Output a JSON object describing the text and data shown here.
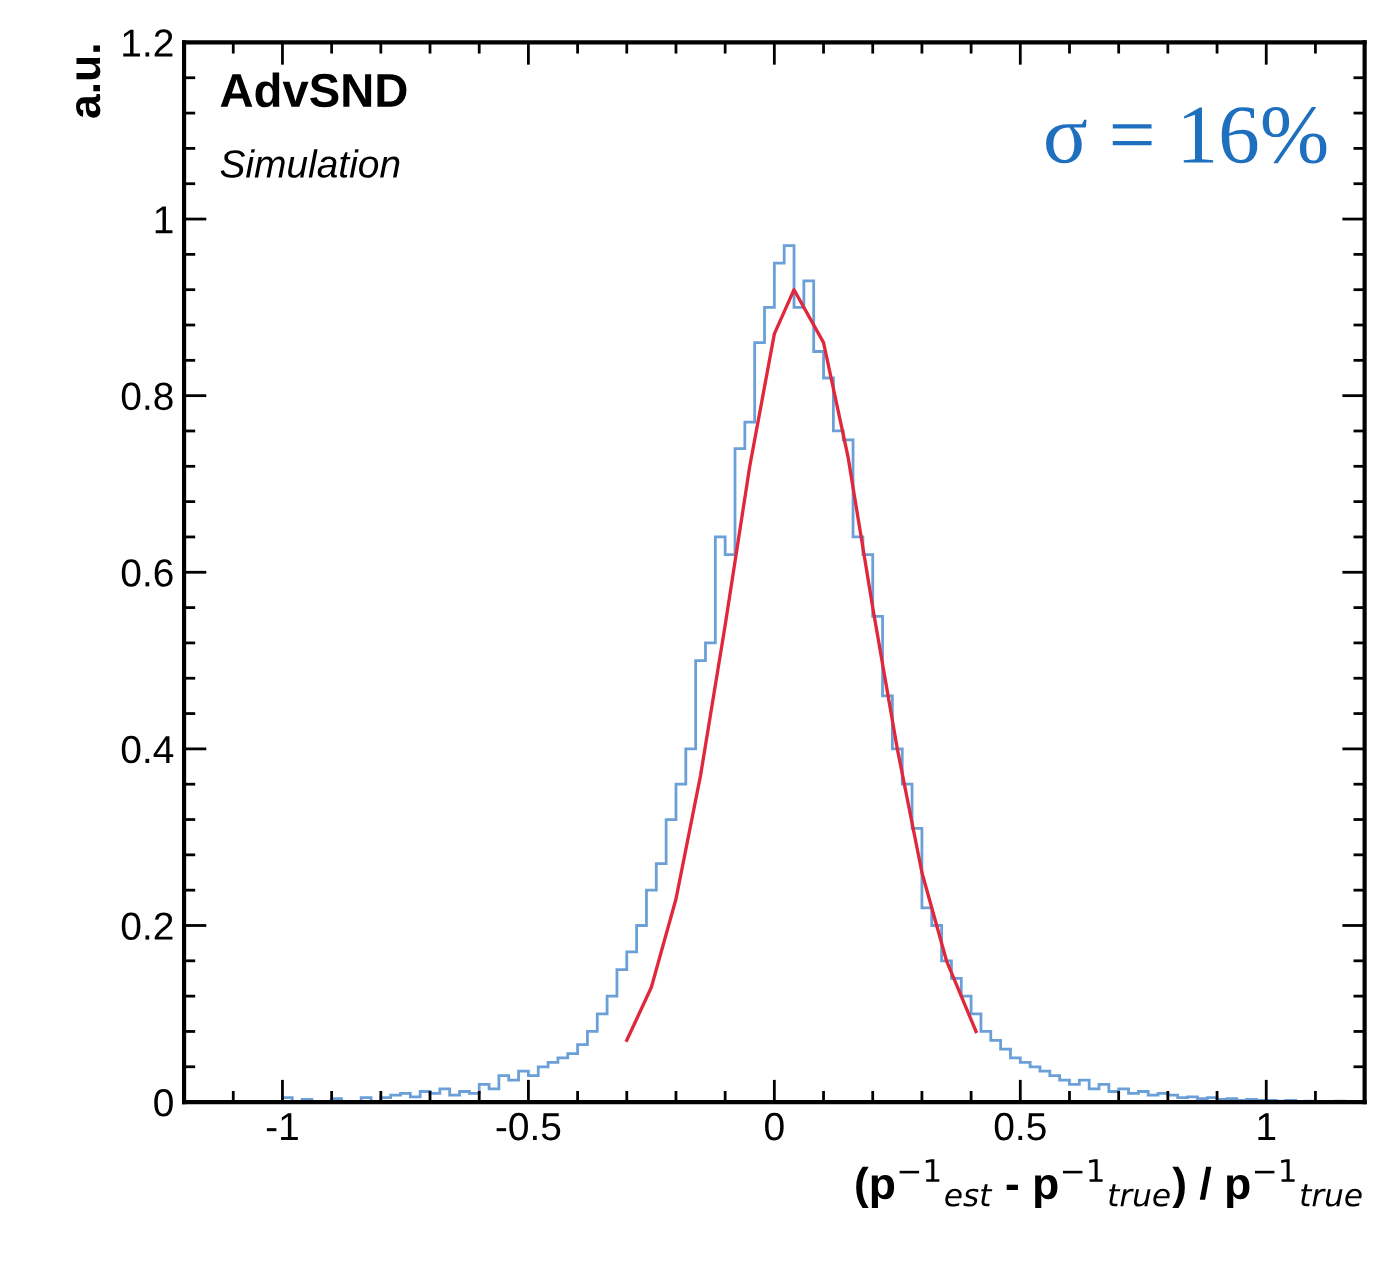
{
  "chart_data": {
    "type": "histogram",
    "xlabel": "(p$^{−1}$$_{est}$ - p$^{−1}$$_{true}$) / p$^{−1}$$_{true}$",
    "ylabel": "a.u.",
    "annotations": [
      "AdvSND",
      "Simulation",
      "σ = 16%"
    ],
    "xlim": [
      -1.2,
      1.2
    ],
    "ylim": [
      0,
      1.2
    ],
    "xticks": [
      -1,
      -0.5,
      0,
      0.5,
      1
    ],
    "yticks": [
      0,
      0.2,
      0.4,
      0.6,
      0.8,
      1,
      1.2
    ],
    "grid": false,
    "legend": false,
    "bins": [
      -1.2,
      -1.18,
      -1.16,
      -1.14,
      -1.12,
      -1.1,
      -1.08,
      -1.06,
      -1.04,
      -1.02,
      -1.0,
      -0.98,
      -0.96,
      -0.94,
      -0.92,
      -0.9,
      -0.88,
      -0.86,
      -0.84,
      -0.82,
      -0.8,
      -0.78,
      -0.76,
      -0.74,
      -0.72,
      -0.7,
      -0.68,
      -0.66,
      -0.64,
      -0.62,
      -0.6,
      -0.58,
      -0.56,
      -0.54,
      -0.52,
      -0.5,
      -0.48,
      -0.46,
      -0.44,
      -0.42,
      -0.4,
      -0.38,
      -0.36,
      -0.34,
      -0.32,
      -0.3,
      -0.28,
      -0.26,
      -0.24,
      -0.22,
      -0.2,
      -0.18,
      -0.16,
      -0.14,
      -0.12,
      -0.1,
      -0.08,
      -0.06,
      -0.04,
      -0.02,
      0,
      0.02,
      0.04,
      0.06,
      0.08,
      0.1,
      0.12,
      0.14,
      0.16,
      0.18,
      0.2,
      0.22,
      0.24,
      0.26,
      0.28,
      0.3,
      0.32,
      0.34,
      0.36,
      0.38,
      0.4,
      0.42,
      0.44,
      0.46,
      0.48,
      0.5,
      0.52,
      0.54,
      0.56,
      0.58,
      0.6,
      0.62,
      0.64,
      0.66,
      0.68,
      0.7,
      0.72,
      0.74,
      0.76,
      0.78,
      0.8,
      0.82,
      0.84,
      0.86,
      0.88,
      0.9,
      0.92,
      0.94,
      0.96,
      0.98,
      1.0,
      1.02,
      1.04,
      1.06,
      1.08,
      1.1,
      1.12,
      1.14,
      1.16,
      1.18,
      1.2
    ],
    "color": "#6a9fd8",
    "values": [
      0,
      0,
      0,
      0,
      0,
      0,
      0,
      0,
      0,
      0,
      0.005,
      0,
      0.003,
      0,
      0,
      0.004,
      0,
      0,
      0.005,
      0,
      0.005,
      0.008,
      0.01,
      0.006,
      0.012,
      0.01,
      0.015,
      0.008,
      0.012,
      0.01,
      0.02,
      0.015,
      0.03,
      0.025,
      0.035,
      0.03,
      0.04,
      0.045,
      0.05,
      0.055,
      0.065,
      0.08,
      0.1,
      0.12,
      0.15,
      0.17,
      0.2,
      0.24,
      0.27,
      0.32,
      0.36,
      0.4,
      0.5,
      0.52,
      0.64,
      0.62,
      0.74,
      0.77,
      0.86,
      0.9,
      0.95,
      0.97,
      0.9,
      0.93,
      0.85,
      0.82,
      0.76,
      0.75,
      0.64,
      0.62,
      0.55,
      0.46,
      0.4,
      0.36,
      0.31,
      0.22,
      0.2,
      0.16,
      0.14,
      0.12,
      0.1,
      0.08,
      0.07,
      0.06,
      0.05,
      0.045,
      0.04,
      0.035,
      0.03,
      0.025,
      0.02,
      0.025,
      0.015,
      0.02,
      0.012,
      0.015,
      0.01,
      0.012,
      0.008,
      0.01,
      0.008,
      0.005,
      0.006,
      0.004,
      0.005,
      0.003,
      0.004,
      0.002,
      0.003,
      0.002,
      0.002,
      0.001,
      0.002,
      0,
      0.001,
      0,
      0,
      0.001,
      0,
      0
    ],
    "series": [
      {
        "type": "line",
        "color": "#e0283c",
        "x": [
          -0.3,
          -0.25,
          -0.2,
          -0.15,
          -0.1,
          -0.05,
          0,
          0.04,
          0.1,
          0.15,
          0.2,
          0.25,
          0.3,
          0.35,
          0.41
        ],
        "values": [
          0.07,
          0.13,
          0.23,
          0.37,
          0.54,
          0.72,
          0.87,
          0.92,
          0.86,
          0.73,
          0.56,
          0.4,
          0.26,
          0.16,
          0.08
        ]
      }
    ]
  }
}
